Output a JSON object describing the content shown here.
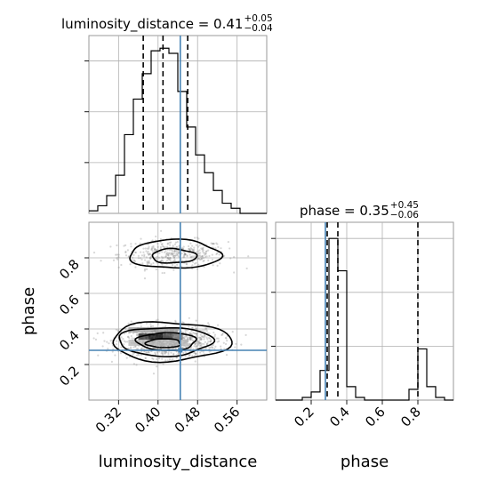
{
  "chart_data": [
    {
      "type": "histogram",
      "panel": "marginal",
      "parameter": "luminosity_distance",
      "title": {
        "base": "luminosity_distance = 0.41",
        "sup": "+0.05",
        "sub": "−0.04"
      },
      "xlim": [
        0.26,
        0.62
      ],
      "bins": {
        "edges": [
          0.26,
          0.278,
          0.296,
          0.314,
          0.332,
          0.35,
          0.368,
          0.386,
          0.404,
          0.422,
          0.44,
          0.458,
          0.476,
          0.494,
          0.512,
          0.53,
          0.548,
          0.566,
          0.584,
          0.602,
          0.62
        ],
        "counts": [
          1,
          3,
          7,
          15,
          31,
          45,
          55,
          64,
          65,
          63,
          48,
          34,
          23,
          16,
          9,
          4,
          2,
          0,
          0,
          0
        ]
      },
      "ylim": [
        0,
        70
      ],
      "quantiles": [
        0.37,
        0.41,
        0.46
      ],
      "truth": 0.445
    },
    {
      "type": "scatter",
      "panel": "joint",
      "xlabel": "luminosity_distance",
      "ylabel": "phase",
      "xlim": [
        0.26,
        0.62
      ],
      "ylim": [
        0.0,
        1.0
      ],
      "xticks": [
        "0.32",
        "0.40",
        "0.48",
        "0.56"
      ],
      "xtick_values": [
        0.32,
        0.4,
        0.48,
        0.56
      ],
      "yticks": [
        "0.2",
        "0.4",
        "0.6",
        "0.8"
      ],
      "ytick_values": [
        0.2,
        0.4,
        0.6,
        0.8
      ],
      "modes": [
        {
          "x_mean": 0.43,
          "y_mean": 0.82,
          "x_sd": 0.055,
          "y_sd": 0.04,
          "weight": 0.3
        },
        {
          "x_mean": 0.42,
          "y_mean": 0.33,
          "x_sd": 0.05,
          "y_sd": 0.045,
          "weight": 0.7
        }
      ],
      "contours": [
        {
          "cx": 0.43,
          "cy": 0.82,
          "rx": 0.092,
          "ry": 0.08
        },
        {
          "cx": 0.43,
          "cy": 0.81,
          "rx": 0.045,
          "ry": 0.04
        },
        {
          "cx": 0.42,
          "cy": 0.33,
          "rx": 0.12,
          "ry": 0.11
        },
        {
          "cx": 0.41,
          "cy": 0.33,
          "rx": 0.095,
          "ry": 0.08
        },
        {
          "cx": 0.415,
          "cy": 0.33,
          "rx": 0.06,
          "ry": 0.05
        },
        {
          "cx": 0.41,
          "cy": 0.32,
          "rx": 0.035,
          "ry": 0.025
        }
      ],
      "truth": {
        "x": 0.445,
        "y": 0.28
      }
    },
    {
      "type": "histogram",
      "panel": "marginal",
      "parameter": "phase",
      "title": {
        "base": "phase = 0.35",
        "sup": "+0.45",
        "sub": "−0.06"
      },
      "xlabel": "phase",
      "xlim": [
        0.0,
        1.0
      ],
      "xticks": [
        "0.2",
        "0.4",
        "0.6",
        "0.8"
      ],
      "xtick_values": [
        0.2,
        0.4,
        0.6,
        0.8
      ],
      "bins": {
        "edges": [
          0.0,
          0.05,
          0.1,
          0.15,
          0.2,
          0.25,
          0.3,
          0.35,
          0.4,
          0.45,
          0.5,
          0.55,
          0.6,
          0.65,
          0.7,
          0.75,
          0.8,
          0.85,
          0.9,
          0.95,
          1.0
        ],
        "counts": [
          0,
          0,
          0,
          1,
          3,
          11,
          60,
          48,
          5,
          1,
          0,
          0,
          0,
          0,
          0,
          4,
          19,
          5,
          1,
          0
        ]
      },
      "ylim": [
        0,
        66
      ],
      "quantiles": [
        0.29,
        0.35,
        0.8
      ],
      "truth": 0.28
    }
  ]
}
